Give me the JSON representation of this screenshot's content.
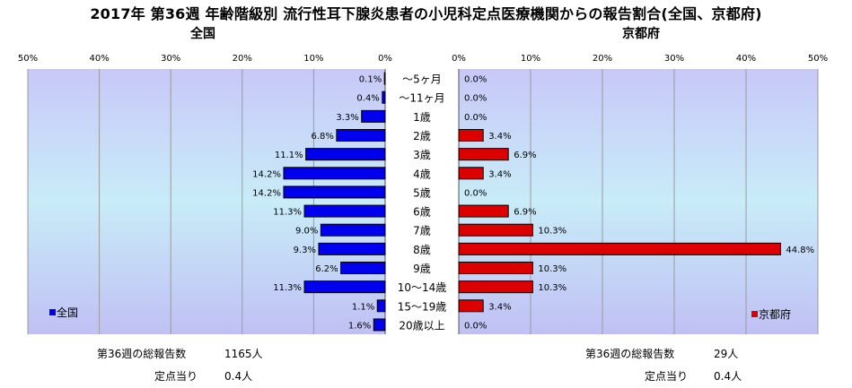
{
  "title": "2017年 第36週 年齢階級別 流行性耳下腺炎患者の小児科定点医療機関からの報告割合(全国、京都府)",
  "colors": {
    "national_bar": "#0000ee",
    "kyoto_bar": "#dd0000",
    "plot_top": "#c8c8f8",
    "plot_mid": "#c8ecf8",
    "plot_bottom": "#c0c0f4"
  },
  "chart_data": [
    {
      "type": "bar",
      "orientation": "horizontal",
      "direction": "right-to-left",
      "panel_title": "全国",
      "categories": [
        "～5ヶ月",
        "～11ヶ月",
        "1歳",
        "2歳",
        "3歳",
        "4歳",
        "5歳",
        "6歳",
        "7歳",
        "8歳",
        "9歳",
        "10～14歳",
        "15～19歳",
        "20歳以上"
      ],
      "series": [
        {
          "name": "全国",
          "values": [
            0.1,
            0.4,
            3.3,
            6.8,
            11.1,
            14.2,
            14.2,
            11.3,
            9.0,
            9.3,
            6.2,
            11.3,
            1.1,
            1.6
          ]
        }
      ],
      "value_labels": [
        "0.1%",
        "0.4%",
        "3.3%",
        "6.8%",
        "11.1%",
        "14.2%",
        "14.2%",
        "11.3%",
        "9.0%",
        "9.3%",
        "6.2%",
        "11.3%",
        "1.1%",
        "1.6%"
      ],
      "xlim": [
        0,
        50
      ],
      "ticks": [
        "50%",
        "40%",
        "30%",
        "20%",
        "10%",
        "0%"
      ],
      "grid": true,
      "legend": "bottom-left"
    },
    {
      "type": "bar",
      "orientation": "horizontal",
      "direction": "left-to-right",
      "panel_title": "京都府",
      "categories": [
        "～5ヶ月",
        "～11ヶ月",
        "1歳",
        "2歳",
        "3歳",
        "4歳",
        "5歳",
        "6歳",
        "7歳",
        "8歳",
        "9歳",
        "10～14歳",
        "15～19歳",
        "20歳以上"
      ],
      "series": [
        {
          "name": "京都府",
          "values": [
            0.0,
            0.0,
            0.0,
            3.4,
            6.9,
            3.4,
            0.0,
            6.9,
            10.3,
            44.8,
            10.3,
            10.3,
            3.4,
            0.0
          ]
        }
      ],
      "value_labels": [
        "0.0%",
        "0.0%",
        "0.0%",
        "3.4%",
        "6.9%",
        "3.4%",
        "0.0%",
        "6.9%",
        "10.3%",
        "44.8%",
        "10.3%",
        "10.3%",
        "3.4%",
        "0.0%"
      ],
      "xlim": [
        0,
        50
      ],
      "ticks": [
        "0%",
        "10%",
        "20%",
        "30%",
        "40%",
        "50%"
      ],
      "grid": true,
      "legend": "bottom-right"
    }
  ],
  "footer": {
    "national_total_label": "第36週の総報告数",
    "national_total_value": "1165人",
    "national_per_label": "定点当り",
    "national_per_value": "0.4人",
    "kyoto_total_label": "第36週の総報告数",
    "kyoto_total_value": "29人",
    "kyoto_per_label": "定点当り",
    "kyoto_per_value": "0.4人"
  }
}
